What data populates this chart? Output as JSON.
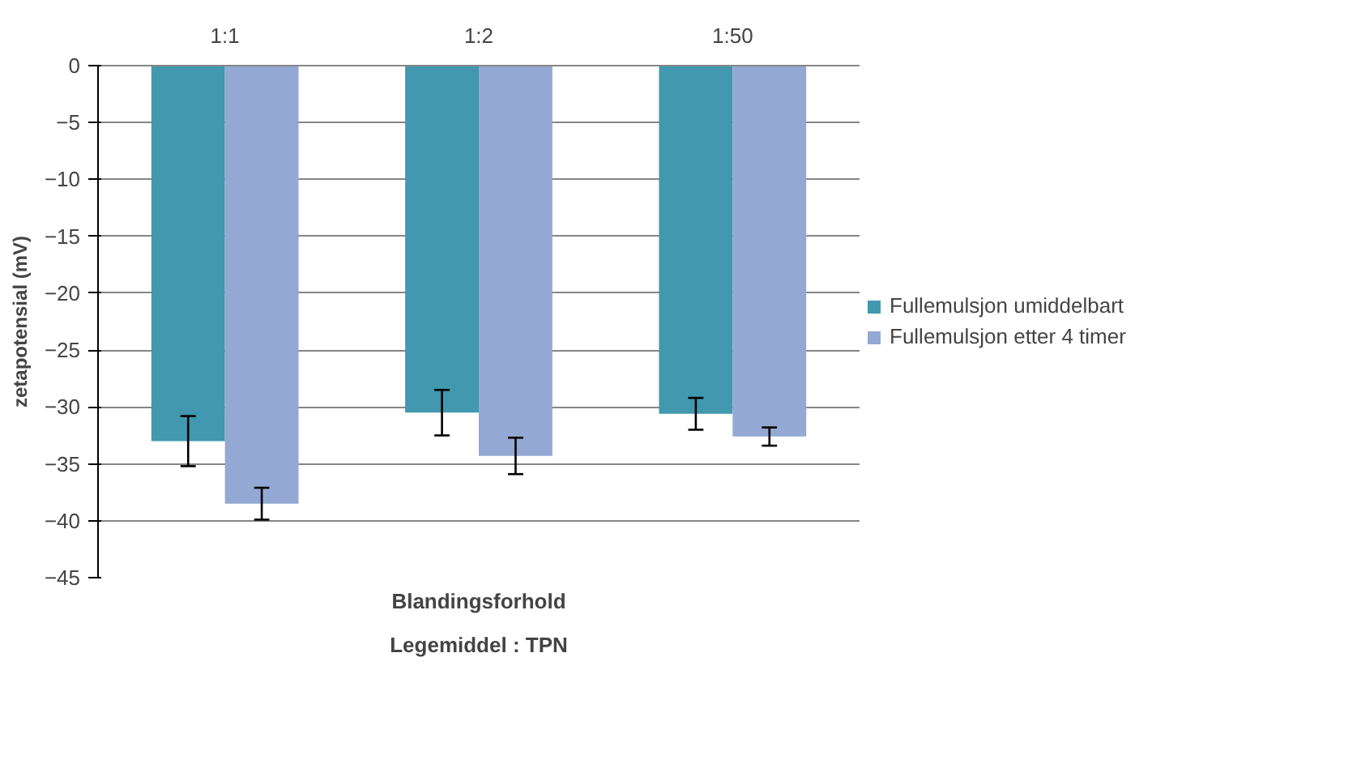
{
  "chart_data": {
    "type": "bar",
    "categories": [
      "1:1",
      "1:2",
      "1:50"
    ],
    "ylabel": "zetapotensial (mV)",
    "xlabel": "Blandingsforhold\nLegemiddel : TPN",
    "ylim": [
      -45,
      0
    ],
    "yticks": [
      -45,
      -40,
      -35,
      -30,
      -25,
      -20,
      -15,
      -10,
      -5,
      0
    ],
    "grid": "y",
    "legend": "right",
    "series": [
      {
        "name": "Fullemulsjon umiddelbart",
        "color": "#4198af",
        "values": [
          -33,
          -30.5,
          -30.6
        ],
        "errors": [
          2.2,
          2,
          1.4
        ]
      },
      {
        "name": "Fullemulsjon etter 4 timer",
        "color": "#93a9d3",
        "values": [
          -38.5,
          -34.3,
          -32.6
        ],
        "errors": [
          1.4,
          1.6,
          0.8
        ]
      }
    ]
  }
}
